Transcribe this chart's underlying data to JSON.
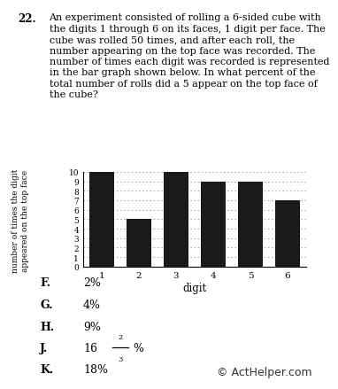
{
  "question_number": "22.",
  "question_text": "An experiment consisted of rolling a 6-sided cube with\nthe digits 1 through 6 on its faces, 1 digit per face. The\ncube was rolled 50 times, and after each roll, the\nnumber appearing on the top face was recorded. The\nnumber of times each digit was recorded is represented\nin the bar graph shown below. In what percent of the\ntotal number of rolls did a 5 appear on the top face of\nthe cube?",
  "categories": [
    1,
    2,
    3,
    4,
    5,
    6
  ],
  "values": [
    10,
    5,
    10,
    9,
    9,
    7
  ],
  "bar_color": "#1a1a1a",
  "xlabel": "digit",
  "ylabel_line1": "number of times the digit",
  "ylabel_line2": "appeared on the top face",
  "ylim": [
    0,
    10
  ],
  "yticks": [
    0,
    1,
    2,
    3,
    4,
    5,
    6,
    7,
    8,
    9,
    10
  ],
  "copyright": "© ActHelper.com",
  "background_color": "#ffffff",
  "grid_color": "#999999",
  "text_color": "#000000"
}
